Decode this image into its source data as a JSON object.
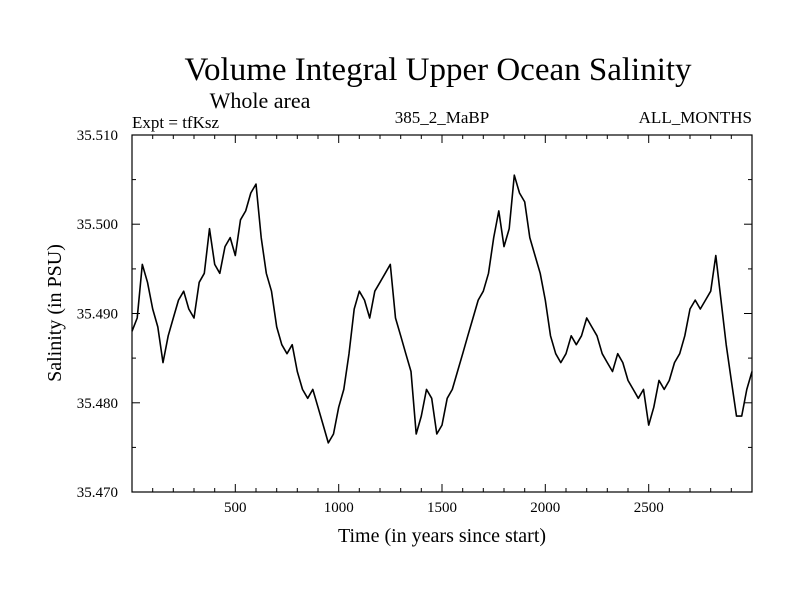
{
  "chart_data": {
    "type": "line",
    "title": "Volume Integral Upper Ocean Salinity",
    "subtitle": "Whole area",
    "experiment": "Expt = tfKsz",
    "run": "385_2_MaBP",
    "months": "ALL_MONTHS",
    "xlabel": "Time (in years since start)",
    "ylabel": "Salinity (in PSU)",
    "xlim": [
      0,
      3000
    ],
    "ylim": [
      35.47,
      35.51
    ],
    "xticks": [
      500,
      1000,
      1500,
      2000,
      2500
    ],
    "xtick_labels": [
      "500",
      "1000",
      "1500",
      "2000",
      "2500"
    ],
    "yticks": [
      35.47,
      35.48,
      35.49,
      35.5,
      35.51
    ],
    "ytick_labels": [
      "35.470",
      "35.480",
      "35.490",
      "35.500",
      "35.510"
    ],
    "series": [
      {
        "name": "salinity",
        "x": [
          0,
          25,
          50,
          75,
          100,
          125,
          150,
          175,
          200,
          225,
          250,
          275,
          300,
          325,
          350,
          375,
          400,
          425,
          450,
          475,
          500,
          525,
          550,
          575,
          600,
          625,
          650,
          675,
          700,
          725,
          750,
          775,
          800,
          825,
          850,
          875,
          900,
          925,
          950,
          975,
          1000,
          1025,
          1050,
          1075,
          1100,
          1125,
          1150,
          1175,
          1200,
          1225,
          1250,
          1275,
          1300,
          1325,
          1350,
          1375,
          1400,
          1425,
          1450,
          1475,
          1500,
          1525,
          1550,
          1575,
          1600,
          1625,
          1650,
          1675,
          1700,
          1725,
          1750,
          1775,
          1800,
          1825,
          1850,
          1875,
          1900,
          1925,
          1950,
          1975,
          2000,
          2025,
          2050,
          2075,
          2100,
          2125,
          2150,
          2175,
          2200,
          2225,
          2250,
          2275,
          2300,
          2325,
          2350,
          2375,
          2400,
          2425,
          2450,
          2475,
          2500,
          2525,
          2550,
          2575,
          2600,
          2625,
          2650,
          2675,
          2700,
          2725,
          2750,
          2775,
          2800,
          2825,
          2850,
          2875,
          2900,
          2925,
          2950,
          2975,
          3000
        ],
        "values": [
          35.488,
          35.4895,
          35.4955,
          35.4935,
          35.4905,
          35.4885,
          35.4845,
          35.4875,
          35.4895,
          35.4915,
          35.4925,
          35.4905,
          35.4895,
          35.4935,
          35.4945,
          35.4995,
          35.4955,
          35.4945,
          35.4975,
          35.4985,
          35.4965,
          35.5005,
          35.5015,
          35.5035,
          35.5045,
          35.4985,
          35.4945,
          35.4925,
          35.4885,
          35.4865,
          35.4855,
          35.4865,
          35.4835,
          35.4815,
          35.4805,
          35.4815,
          35.4795,
          35.4775,
          35.4755,
          35.4765,
          35.4795,
          35.4815,
          35.4855,
          35.4905,
          35.4925,
          35.4915,
          35.4895,
          35.4925,
          35.4935,
          35.4945,
          35.4955,
          35.4895,
          35.4875,
          35.4855,
          35.4835,
          35.4765,
          35.4785,
          35.4815,
          35.4805,
          35.4765,
          35.4775,
          35.4805,
          35.4815,
          35.4835,
          35.4855,
          35.4875,
          35.4895,
          35.4915,
          35.4925,
          35.4945,
          35.4985,
          35.5015,
          35.4975,
          35.4995,
          35.5055,
          35.5035,
          35.5025,
          35.4985,
          35.4965,
          35.4945,
          35.4915,
          35.4875,
          35.4855,
          35.4845,
          35.4855,
          35.4875,
          35.4865,
          35.4875,
          35.4895,
          35.4885,
          35.4875,
          35.4855,
          35.4845,
          35.4835,
          35.4855,
          35.4845,
          35.4825,
          35.4815,
          35.4805,
          35.4815,
          35.4775,
          35.4795,
          35.4825,
          35.4815,
          35.4825,
          35.4845,
          35.4855,
          35.4875,
          35.4905,
          35.4915,
          35.4905,
          35.4915,
          35.4925,
          35.4965,
          35.4915,
          35.4865,
          35.4825,
          35.4785,
          35.4785,
          35.4815,
          35.4835
        ]
      }
    ]
  }
}
